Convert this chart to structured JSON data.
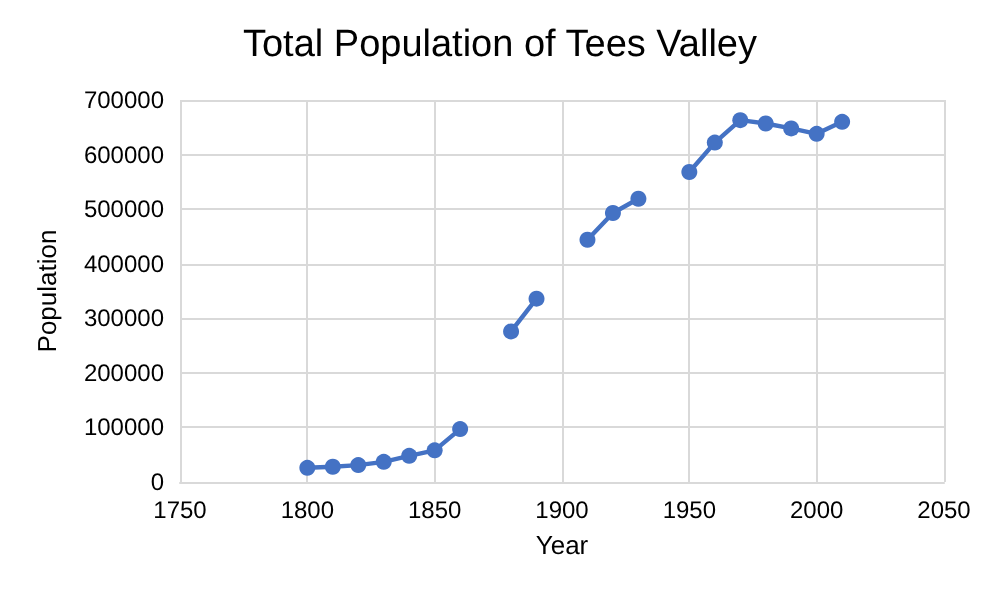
{
  "chart_data": {
    "type": "line",
    "title": "Total Population of Tees Valley",
    "xlabel": "Year",
    "ylabel": "Population",
    "x": [
      1800,
      1810,
      1820,
      1830,
      1840,
      1850,
      1860,
      1870,
      1880,
      1890,
      1900,
      1910,
      1920,
      1930,
      1940,
      1950,
      1960,
      1970,
      1980,
      1990,
      2000,
      2010
    ],
    "series": [
      {
        "color": "#4472c4",
        "values": [
          26000,
          28000,
          31000,
          37000,
          48000,
          58000,
          97000,
          null,
          276000,
          336000,
          null,
          444000,
          493000,
          519000,
          null,
          568000,
          622000,
          663000,
          657000,
          648000,
          638000,
          660000
        ]
      }
    ],
    "xlim": [
      1750,
      2050
    ],
    "xticks": [
      1750,
      1800,
      1850,
      1900,
      1950,
      2000,
      2050
    ],
    "ylim": [
      0,
      700000
    ],
    "yticks": [
      0,
      100000,
      200000,
      300000,
      400000,
      500000,
      600000,
      700000
    ],
    "grid": true,
    "marker": "circle",
    "line_style": "solid"
  }
}
